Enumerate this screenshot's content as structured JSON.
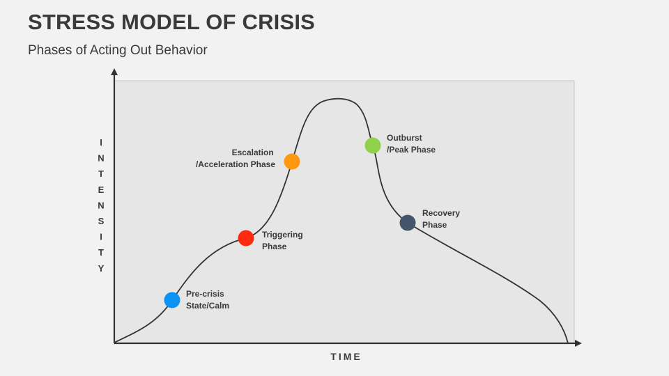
{
  "slide": {
    "title": "STRESS MODEL OF CRISIS",
    "subtitle": "Phases of Acting Out Behavior"
  },
  "axes": {
    "y_label": "INTENSITY",
    "y_letters": [
      "I",
      "N",
      "T",
      "E",
      "N",
      "S",
      "I",
      "T",
      "Y"
    ],
    "x_label": "TIME"
  },
  "phases": [
    {
      "id": "pre-crisis",
      "lines": [
        "Pre-crisis",
        "State/Calm"
      ],
      "color": "#0a93f5"
    },
    {
      "id": "triggering",
      "lines": [
        "Triggering",
        "Phase"
      ],
      "color": "#ff2a0f"
    },
    {
      "id": "escalation",
      "lines": [
        "Escalation",
        "/Acceleration Phase"
      ],
      "color": "#ff9810"
    },
    {
      "id": "outburst",
      "lines": [
        "Outburst",
        "/Peak Phase"
      ],
      "color": "#8fd14a"
    },
    {
      "id": "recovery",
      "lines": [
        "Recovery",
        "Phase"
      ],
      "color": "#44546a"
    }
  ],
  "colors": {
    "plot_background": "#e6e6e6",
    "curve": "#333333",
    "axis": "#333333"
  }
}
